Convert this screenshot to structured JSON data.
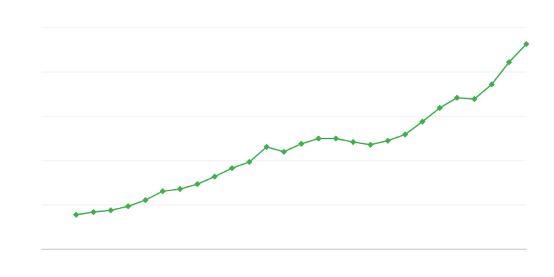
{
  "chart_data": {
    "type": "line",
    "title": "",
    "xlabel": "",
    "ylabel": "",
    "x": [
      2,
      3,
      4,
      5,
      6,
      7,
      8,
      9,
      10,
      11,
      12,
      13,
      14,
      15,
      16,
      17,
      18,
      19,
      20,
      21,
      22,
      23,
      24,
      25,
      26,
      27,
      28
    ],
    "series": [
      {
        "values": [
          0.78,
          0.84,
          0.88,
          0.97,
          1.11,
          1.31,
          1.36,
          1.47,
          1.64,
          1.83,
          1.97,
          2.31,
          2.2,
          2.38,
          2.5,
          2.5,
          2.42,
          2.36,
          2.45,
          2.59,
          2.88,
          3.19,
          3.42,
          3.39,
          3.72,
          4.22,
          4.63
        ]
      }
    ],
    "xlim": [
      0,
      28
    ],
    "ylim": [
      0,
      5
    ],
    "grid": "horizontal",
    "marker": "diamond",
    "tick_labels_shown": false,
    "legend": "none",
    "colors": {
      "line": "#3bb34a",
      "grid": "#ebebeb",
      "axis": "#aaaaaa"
    }
  }
}
